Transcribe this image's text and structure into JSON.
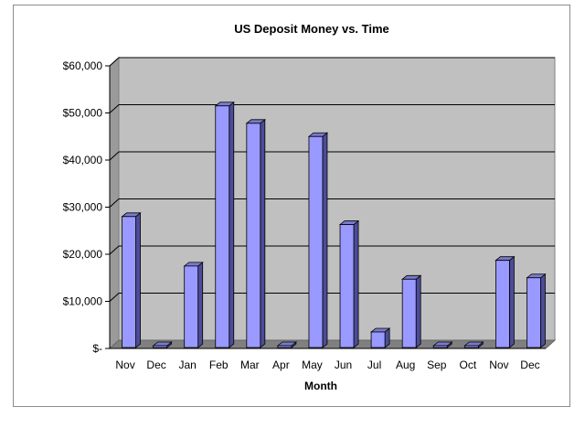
{
  "chart_data": {
    "type": "bar",
    "title": "US Deposit Money vs. Time",
    "xlabel": "Month",
    "ylabel": "",
    "categories": [
      "Nov",
      "Dec",
      "Jan",
      "Feb",
      "Mar",
      "Apr",
      "May",
      "Jun",
      "Jul",
      "Aug",
      "Sep",
      "Oct",
      "Nov",
      "Dec"
    ],
    "values": [
      28000,
      0,
      17500,
      51500,
      47800,
      0,
      45000,
      26300,
      3500,
      14700,
      0,
      0,
      18700,
      15000
    ],
    "ylim": [
      0,
      60000
    ],
    "yticks": [
      0,
      10000,
      20000,
      30000,
      40000,
      50000,
      60000
    ],
    "ytick_labels": [
      "$-",
      "$10,000",
      "$20,000",
      "$30,000",
      "$40,000",
      "$50,000",
      "$60,000"
    ],
    "grid": true,
    "legend": "none",
    "style": "3d-column",
    "colors": {
      "bar_front": "#9999ff",
      "bar_side": "#4c4c99",
      "bar_top": "#7a7acc",
      "plot_back": "#c0c0c0",
      "plot_floor": "#808080",
      "plot_wall": "#9a9a9a",
      "gridline": "#000000"
    }
  }
}
